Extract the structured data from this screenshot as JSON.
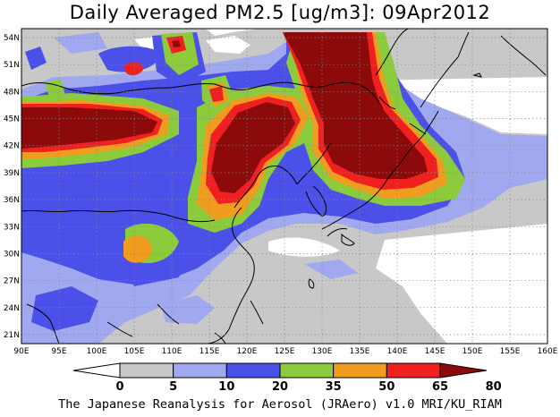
{
  "title": "Daily Averaged PM2.5 [ug/m3]: 09Apr2012",
  "footer": "The Japanese Reanalysis for Aerosol (JRAero) v1.0 MRI/KU_RIAM",
  "map": {
    "lon_range": [
      90,
      160
    ],
    "lat_range": [
      20,
      55
    ],
    "lon_ticks": [
      "90E",
      "95E",
      "100E",
      "105E",
      "110E",
      "115E",
      "120E",
      "125E",
      "130E",
      "135E",
      "140E",
      "145E",
      "150E",
      "155E",
      "160E"
    ],
    "lat_ticks": [
      "54N",
      "51N",
      "48N",
      "45N",
      "42N",
      "39N",
      "36N",
      "33N",
      "30N",
      "27N",
      "24N",
      "21N"
    ],
    "grid": true
  },
  "colorbar": {
    "levels": [
      "0",
      "5",
      "10",
      "20",
      "35",
      "50",
      "65",
      "80"
    ],
    "colors": [
      "#ffffff",
      "#c8c8c8",
      "#a0a8f0",
      "#4a50e8",
      "#8ccc3c",
      "#f09c1e",
      "#f02020",
      "#8c0a0a"
    ]
  },
  "regions": {
    "gray": "#c8c8c8",
    "light": "#a0a8f0",
    "blue": "#4a50e8",
    "green": "#8ccc3c",
    "orange": "#f09c1e",
    "red": "#f02020",
    "dark": "#8c0a0a"
  }
}
